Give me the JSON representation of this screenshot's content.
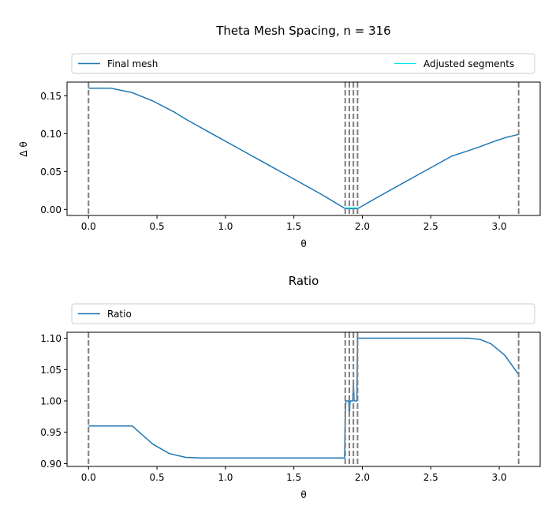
{
  "chart_data": [
    {
      "type": "line",
      "title": "Theta Mesh Spacing, n = 316",
      "xlabel": "θ",
      "ylabel": "Δ θ",
      "xlim": [
        -0.157,
        3.299
      ],
      "ylim": [
        -0.008,
        0.168
      ],
      "xticks": [
        0.0,
        0.5,
        1.0,
        1.5,
        2.0,
        2.5,
        3.0
      ],
      "xtick_labels": [
        "0.0",
        "0.5",
        "1.0",
        "1.5",
        "2.0",
        "2.5",
        "3.0"
      ],
      "yticks": [
        0.0,
        0.05,
        0.1,
        0.15
      ],
      "ytick_labels": [
        "0.00",
        "0.05",
        "0.10",
        "0.15"
      ],
      "vlines": [
        0.0,
        1.875,
        1.905,
        1.935,
        1.965,
        3.1416
      ],
      "legend": {
        "placement": "top, above axes, expanded",
        "entries": [
          "Final mesh",
          "Adjusted segments"
        ]
      },
      "series": [
        {
          "name": "Final mesh",
          "color": "#1f77b4",
          "x": [
            0.0,
            0.16,
            0.32,
            0.47,
            0.62,
            0.72,
            0.9,
            1.1,
            1.3,
            1.5,
            1.7,
            1.875,
            1.905,
            1.935,
            1.965,
            2.15,
            2.4,
            2.65,
            2.85,
            2.95,
            3.05,
            3.1416
          ],
          "y": [
            0.16,
            0.16,
            0.154,
            0.143,
            0.129,
            0.118,
            0.1,
            0.08,
            0.06,
            0.04,
            0.02,
            0.001,
            0.001,
            0.001,
            0.001,
            0.02,
            0.045,
            0.07,
            0.082,
            0.089,
            0.095,
            0.099
          ]
        },
        {
          "name": "Adjusted segments",
          "color": "#00e5ee",
          "x": [
            1.875,
            1.905,
            1.935,
            1.965
          ],
          "y": [
            0.002,
            0.002,
            0.002,
            0.002
          ]
        }
      ]
    },
    {
      "type": "line",
      "title": "Ratio",
      "xlabel": "θ",
      "ylabel": "",
      "xlim": [
        -0.157,
        3.299
      ],
      "ylim": [
        0.8955,
        1.1095
      ],
      "xticks": [
        0.0,
        0.5,
        1.0,
        1.5,
        2.0,
        2.5,
        3.0
      ],
      "xtick_labels": [
        "0.0",
        "0.5",
        "1.0",
        "1.5",
        "2.0",
        "2.5",
        "3.0"
      ],
      "yticks": [
        0.9,
        0.95,
        1.0,
        1.05,
        1.1
      ],
      "ytick_labels": [
        "0.90",
        "0.95",
        "1.00",
        "1.05",
        "1.10"
      ],
      "vlines": [
        0.0,
        1.875,
        1.905,
        1.935,
        1.965,
        3.1416
      ],
      "legend": {
        "placement": "top, above axes, expanded",
        "entries": [
          "Ratio"
        ]
      },
      "series": [
        {
          "name": "Ratio",
          "color": "#1f77b4",
          "x": [
            0.0,
            0.32,
            0.47,
            0.59,
            0.71,
            0.82,
            1.0,
            1.5,
            1.87,
            1.875,
            1.88,
            1.9,
            1.905,
            1.91,
            1.93,
            1.935,
            1.94,
            1.96,
            1.965,
            2.1,
            2.5,
            2.78,
            2.86,
            2.94,
            3.04,
            3.1416
          ],
          "y": [
            0.96,
            0.96,
            0.931,
            0.916,
            0.91,
            0.909,
            0.909,
            0.909,
            0.909,
            0.975,
            1.0,
            1.0,
            0.975,
            1.0,
            1.0,
            1.025,
            1.0,
            1.0,
            1.1,
            1.1,
            1.1,
            1.1,
            1.098,
            1.091,
            1.073,
            1.042
          ]
        }
      ]
    }
  ]
}
